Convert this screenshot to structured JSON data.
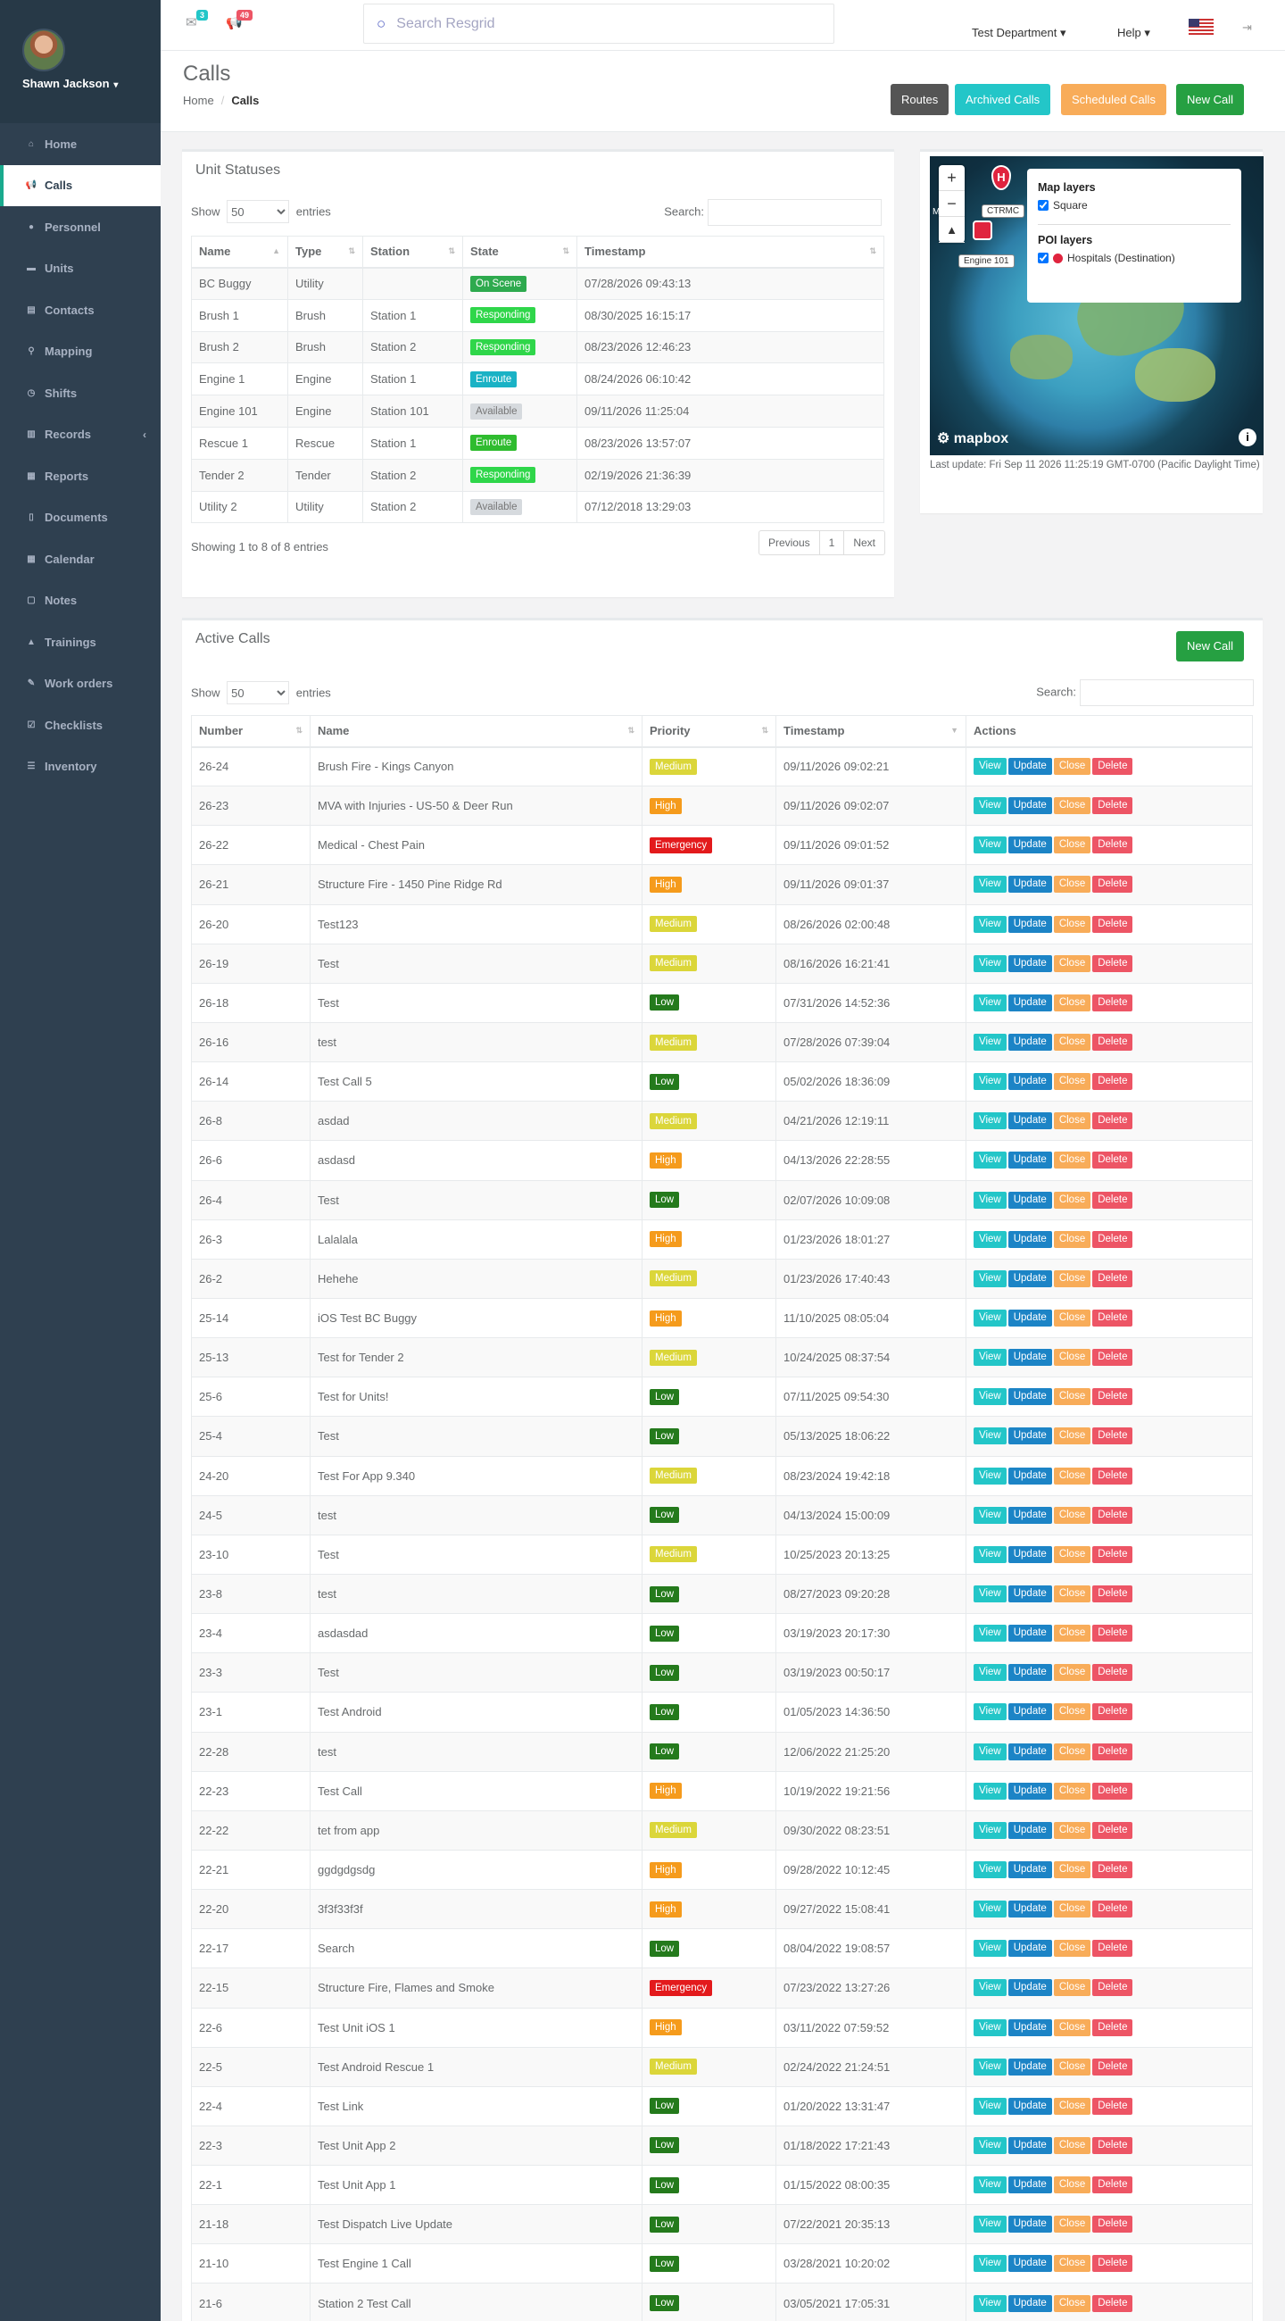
{
  "user": {
    "name": "Shawn Jackson"
  },
  "sidebar": {
    "items": [
      {
        "label": "Home",
        "icon": "home-icon"
      },
      {
        "label": "Calls",
        "icon": "bullhorn-icon"
      },
      {
        "label": "Personnel",
        "icon": "user-icon"
      },
      {
        "label": "Units",
        "icon": "truck-icon"
      },
      {
        "label": "Contacts",
        "icon": "address-book-icon"
      },
      {
        "label": "Mapping",
        "icon": "map-marker-icon"
      },
      {
        "label": "Shifts",
        "icon": "clock-icon"
      },
      {
        "label": "Records",
        "icon": "book-icon"
      },
      {
        "label": "Reports",
        "icon": "chart-icon"
      },
      {
        "label": "Documents",
        "icon": "file-icon"
      },
      {
        "label": "Calendar",
        "icon": "calendar-icon"
      },
      {
        "label": "Notes",
        "icon": "sticky-note-icon"
      },
      {
        "label": "Trainings",
        "icon": "graduation-icon"
      },
      {
        "label": "Work orders",
        "icon": "wrench-icon"
      },
      {
        "label": "Checklists",
        "icon": "check-square-icon"
      },
      {
        "label": "Inventory",
        "icon": "list-icon"
      }
    ]
  },
  "topbar": {
    "messages_count": "3",
    "notifications_count": "49",
    "search_placeholder": "Search Resgrid",
    "department": "Test Department",
    "help": "Help"
  },
  "heading": {
    "title": "Calls",
    "breadcrumb_home": "Home",
    "breadcrumb_current": "Calls"
  },
  "header_buttons": {
    "routes": "Routes",
    "archived": "Archived Calls",
    "scheduled": "Scheduled Calls",
    "new_call": "New Call"
  },
  "colors": {
    "green": "#1c84c6",
    "primary": "#19aa8d",
    "info": "#23c6c8",
    "warning": "#f8ac59",
    "danger": "#ed5565",
    "dark": "#555555",
    "newcall": "#26a042"
  },
  "unit_statuses": {
    "title": "Unit Statuses",
    "show_label": "Show",
    "page_size": "50",
    "entries_label": "entries",
    "search_label": "Search:",
    "columns": [
      "Name",
      "Type",
      "Station",
      "State",
      "Timestamp"
    ],
    "rows": [
      {
        "name": "BC Buggy",
        "type": "Utility",
        "station": "",
        "state": "On Scene",
        "state_color": "#2eaa4e",
        "ts": "07/28/2026 09:43:13"
      },
      {
        "name": "Brush 1",
        "type": "Brush",
        "station": "Station 1",
        "state": "Responding",
        "state_color": "#2fd64a",
        "ts": "08/30/2025 16:15:17"
      },
      {
        "name": "Brush 2",
        "type": "Brush",
        "station": "Station 2",
        "state": "Responding",
        "state_color": "#2fd64a",
        "ts": "08/23/2026 12:46:23"
      },
      {
        "name": "Engine 1",
        "type": "Engine",
        "station": "Station 1",
        "state": "Enroute",
        "state_color": "#1ab2c5",
        "ts": "08/24/2026 06:10:42"
      },
      {
        "name": "Engine 101",
        "type": "Engine",
        "station": "Station 101",
        "state": "Available",
        "state_color": "#d6dade",
        "ts": "09/11/2026 11:25:04"
      },
      {
        "name": "Rescue 1",
        "type": "Rescue",
        "station": "Station 1",
        "state": "Enroute",
        "state_color": "#2fbc2f",
        "ts": "08/23/2026 13:57:07"
      },
      {
        "name": "Tender 2",
        "type": "Tender",
        "station": "Station 2",
        "state": "Responding",
        "state_color": "#2fd64a",
        "ts": "02/19/2026 21:36:39"
      },
      {
        "name": "Utility 2",
        "type": "Utility",
        "station": "Station 2",
        "state": "Available",
        "state_color": "#d6dade",
        "ts": "07/12/2018 13:29:03"
      }
    ],
    "info": "Showing 1 to 8 of 8 entries",
    "pager": {
      "prev": "Previous",
      "page": "1",
      "next": "Next"
    }
  },
  "map": {
    "layers_title": "Map layers",
    "layer_square": "Square",
    "poi_title": "POI layers",
    "poi_hospitals": "Hospitals (Destination)",
    "marker_ctrmc": "CTRMC",
    "marker_engine": "Engine 101",
    "marker_m": "M",
    "hospital_glyph": "H",
    "logo": "mapbox",
    "last_update": "Last update: Fri Sep 11 2026 11:25:19 GMT-0700 (Pacific Daylight Time)"
  },
  "active_calls": {
    "title": "Active Calls",
    "new_call": "New Call",
    "show_label": "Show",
    "page_size": "50",
    "entries_label": "entries",
    "search_label": "Search:",
    "columns": [
      "Number",
      "Name",
      "Priority",
      "Timestamp",
      "Actions"
    ],
    "actions": {
      "view": "View",
      "update": "Update",
      "close": "Close",
      "delete": "Delete"
    },
    "priority_colors": {
      "Medium": "#dbd63a",
      "High": "#f59b1c",
      "Emergency": "#e31a1c",
      "Low": "#247a1c"
    },
    "rows": [
      {
        "num": "26-24",
        "name": "Brush Fire - Kings Canyon",
        "priority": "Medium",
        "ts": "09/11/2026 09:02:21"
      },
      {
        "num": "26-23",
        "name": "MVA with Injuries - US-50 & Deer Run",
        "priority": "High",
        "ts": "09/11/2026 09:02:07"
      },
      {
        "num": "26-22",
        "name": "Medical - Chest Pain",
        "priority": "Emergency",
        "ts": "09/11/2026 09:01:52"
      },
      {
        "num": "26-21",
        "name": "Structure Fire - 1450 Pine Ridge Rd",
        "priority": "High",
        "ts": "09/11/2026 09:01:37"
      },
      {
        "num": "26-20",
        "name": "Test123",
        "priority": "Medium",
        "ts": "08/26/2026 02:00:48"
      },
      {
        "num": "26-19",
        "name": "Test",
        "priority": "Medium",
        "ts": "08/16/2026 16:21:41"
      },
      {
        "num": "26-18",
        "name": "Test",
        "priority": "Low",
        "ts": "07/31/2026 14:52:36"
      },
      {
        "num": "26-16",
        "name": "test",
        "priority": "Medium",
        "ts": "07/28/2026 07:39:04"
      },
      {
        "num": "26-14",
        "name": "Test Call 5",
        "priority": "Low",
        "ts": "05/02/2026 18:36:09"
      },
      {
        "num": "26-8",
        "name": "asdad",
        "priority": "Medium",
        "ts": "04/21/2026 12:19:11"
      },
      {
        "num": "26-6",
        "name": "asdasd",
        "priority": "High",
        "ts": "04/13/2026 22:28:55"
      },
      {
        "num": "26-4",
        "name": "Test",
        "priority": "Low",
        "ts": "02/07/2026 10:09:08"
      },
      {
        "num": "26-3",
        "name": "Lalalala",
        "priority": "High",
        "ts": "01/23/2026 18:01:27"
      },
      {
        "num": "26-2",
        "name": "Hehehe",
        "priority": "Medium",
        "ts": "01/23/2026 17:40:43"
      },
      {
        "num": "25-14",
        "name": "iOS Test BC Buggy",
        "priority": "High",
        "ts": "11/10/2025 08:05:04"
      },
      {
        "num": "25-13",
        "name": "Test for Tender 2",
        "priority": "Medium",
        "ts": "10/24/2025 08:37:54"
      },
      {
        "num": "25-6",
        "name": "Test for Units!",
        "priority": "Low",
        "ts": "07/11/2025 09:54:30"
      },
      {
        "num": "25-4",
        "name": "Test",
        "priority": "Low",
        "ts": "05/13/2025 18:06:22"
      },
      {
        "num": "24-20",
        "name": "Test For App 9.340",
        "priority": "Medium",
        "ts": "08/23/2024 19:42:18"
      },
      {
        "num": "24-5",
        "name": "test",
        "priority": "Low",
        "ts": "04/13/2024 15:00:09"
      },
      {
        "num": "23-10",
        "name": "Test",
        "priority": "Medium",
        "ts": "10/25/2023 20:13:25"
      },
      {
        "num": "23-8",
        "name": "test",
        "priority": "Low",
        "ts": "08/27/2023 09:20:28"
      },
      {
        "num": "23-4",
        "name": "asdasdad",
        "priority": "Low",
        "ts": "03/19/2023 20:17:30"
      },
      {
        "num": "23-3",
        "name": "Test",
        "priority": "Low",
        "ts": "03/19/2023 00:50:17"
      },
      {
        "num": "23-1",
        "name": "Test Android",
        "priority": "Low",
        "ts": "01/05/2023 14:36:50"
      },
      {
        "num": "22-28",
        "name": "test",
        "priority": "Low",
        "ts": "12/06/2022 21:25:20"
      },
      {
        "num": "22-23",
        "name": "Test Call",
        "priority": "High",
        "ts": "10/19/2022 19:21:56"
      },
      {
        "num": "22-22",
        "name": "tet from app",
        "priority": "Medium",
        "ts": "09/30/2022 08:23:51"
      },
      {
        "num": "22-21",
        "name": "ggdgdgsdg",
        "priority": "High",
        "ts": "09/28/2022 10:12:45"
      },
      {
        "num": "22-20",
        "name": "3f3f33f3f",
        "priority": "High",
        "ts": "09/27/2022 15:08:41"
      },
      {
        "num": "22-17",
        "name": "Search",
        "priority": "Low",
        "ts": "08/04/2022 19:08:57"
      },
      {
        "num": "22-15",
        "name": "Structure Fire, Flames and Smoke",
        "priority": "Emergency",
        "ts": "07/23/2022 13:27:26"
      },
      {
        "num": "22-6",
        "name": "Test Unit iOS 1",
        "priority": "High",
        "ts": "03/11/2022 07:59:52"
      },
      {
        "num": "22-5",
        "name": "Test Android Rescue 1",
        "priority": "Medium",
        "ts": "02/24/2022 21:24:51"
      },
      {
        "num": "22-4",
        "name": "Test Link",
        "priority": "Low",
        "ts": "01/20/2022 13:31:47"
      },
      {
        "num": "22-3",
        "name": "Test Unit App 2",
        "priority": "Low",
        "ts": "01/18/2022 17:21:43"
      },
      {
        "num": "22-1",
        "name": "Test Unit App 1",
        "priority": "Low",
        "ts": "01/15/2022 08:00:35"
      },
      {
        "num": "21-18",
        "name": "Test Dispatch Live Update",
        "priority": "Low",
        "ts": "07/22/2021 20:35:13"
      },
      {
        "num": "21-10",
        "name": "Test Engine 1 Call",
        "priority": "Low",
        "ts": "03/28/2021 10:20:02"
      },
      {
        "num": "21-6",
        "name": "Station 2 Test Call",
        "priority": "Low",
        "ts": "03/05/2021 17:05:31"
      }
    ]
  }
}
